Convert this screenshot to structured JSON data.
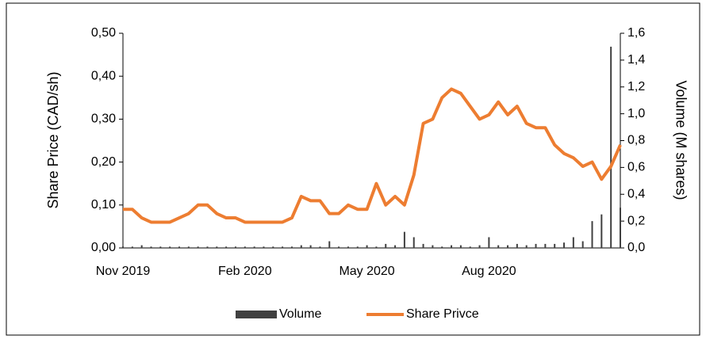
{
  "chart_data": {
    "type": "combo",
    "y_label": "Share Price (CAD/sh)",
    "y2_label": "Volume (M shares)",
    "categories": [
      "Nov 2019",
      null,
      null,
      null,
      null,
      null,
      null,
      null,
      null,
      null,
      null,
      null,
      null,
      "Feb 2020",
      null,
      null,
      null,
      null,
      null,
      null,
      null,
      null,
      null,
      null,
      null,
      null,
      "May 2020",
      null,
      null,
      null,
      null,
      null,
      null,
      null,
      null,
      null,
      null,
      null,
      null,
      "Aug 2020",
      null,
      null,
      null,
      null,
      null,
      null,
      null,
      null,
      null,
      null,
      null,
      null,
      null,
      null
    ],
    "series": [
      {
        "name": "Volume",
        "type": "bar",
        "axis": "y2",
        "color": "#404040",
        "values": [
          0.01,
          0.01,
          0.02,
          0.01,
          0.01,
          0.01,
          0.01,
          0.01,
          0.01,
          0.01,
          0.01,
          0.01,
          0.01,
          0.01,
          0.01,
          0.01,
          0.01,
          0.01,
          0.01,
          0.02,
          0.02,
          0.01,
          0.05,
          0.01,
          0.01,
          0.01,
          0.02,
          0.01,
          0.03,
          0.02,
          0.12,
          0.08,
          0.03,
          0.02,
          0.01,
          0.02,
          0.02,
          0.01,
          0.02,
          0.08,
          0.02,
          0.02,
          0.03,
          0.02,
          0.03,
          0.03,
          0.03,
          0.04,
          0.08,
          0.05,
          0.2,
          0.25,
          1.5,
          0.3
        ]
      },
      {
        "name": "Share Privce",
        "type": "line",
        "color": "#ed7d31",
        "values": [
          0.09,
          0.09,
          0.07,
          0.06,
          0.06,
          0.06,
          0.07,
          0.08,
          0.1,
          0.1,
          0.08,
          0.07,
          0.07,
          0.06,
          0.06,
          0.06,
          0.06,
          0.06,
          0.07,
          0.12,
          0.11,
          0.11,
          0.08,
          0.08,
          0.1,
          0.09,
          0.09,
          0.15,
          0.1,
          0.12,
          0.1,
          0.17,
          0.29,
          0.3,
          0.35,
          0.37,
          0.36,
          0.33,
          0.3,
          0.31,
          0.34,
          0.31,
          0.33,
          0.29,
          0.28,
          0.28,
          0.24,
          0.22,
          0.21,
          0.19,
          0.2,
          0.16,
          0.19,
          0.24
        ]
      }
    ],
    "ylim": [
      0,
      0.5
    ],
    "yticks": [
      {
        "value": 0,
        "label": "0,00"
      },
      {
        "value": 0.1,
        "label": "0,10"
      },
      {
        "value": 0.2,
        "label": "0,20"
      },
      {
        "value": 0.3,
        "label": "0,30"
      },
      {
        "value": 0.4,
        "label": "0,40"
      },
      {
        "value": 0.5,
        "label": "0,50"
      }
    ],
    "y2lim": [
      0,
      1.6
    ],
    "y2ticks": [
      {
        "value": 0,
        "label": "0,0"
      },
      {
        "value": 0.2,
        "label": "0,2"
      },
      {
        "value": 0.4,
        "label": "0,4"
      },
      {
        "value": 0.6,
        "label": "0,6"
      },
      {
        "value": 0.8,
        "label": "0,8"
      },
      {
        "value": 1.0,
        "label": "1,0"
      },
      {
        "value": 1.2,
        "label": "1,2"
      },
      {
        "value": 1.4,
        "label": "1,4"
      },
      {
        "value": 1.6,
        "label": "1,6"
      }
    ],
    "legend": "bottom"
  }
}
